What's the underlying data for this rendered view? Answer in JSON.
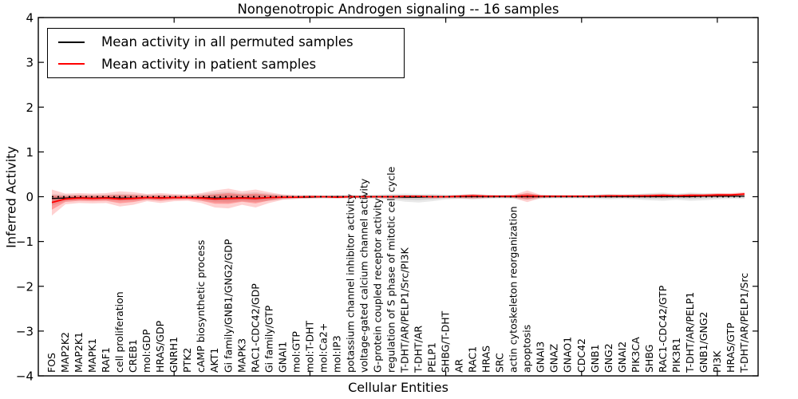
{
  "chart_data": {
    "type": "line",
    "title": "Nongenotropic Androgen signaling -- 16 samples",
    "xlabel": "Cellular Entities",
    "ylabel": "Inferred Activity",
    "ylim": [
      -4,
      4
    ],
    "yticks": [
      4,
      3,
      2,
      1,
      0,
      -1,
      -2,
      -3,
      -4
    ],
    "ytick_labels": [
      "4",
      "3",
      "2",
      "1",
      "0",
      "−1",
      "−2",
      "−3",
      "−4"
    ],
    "xlim": [
      0,
      53
    ],
    "xticks": [
      10,
      20,
      30,
      40,
      50
    ],
    "grid": false,
    "legend_position": "upper-left",
    "zero_line": {
      "y": 0,
      "style": "dotted",
      "color": "#000000"
    },
    "categories": [
      "FOS",
      "MAP2K2",
      "MAP2K1",
      "MAPK1",
      "RAF1",
      "cell proliferation",
      "CREB1",
      "mol:GDP",
      "HRAS/GDP",
      "GNRH1",
      "PTK2",
      "cAMP biosynthetic process",
      "AKT1",
      "Gi family/GNB1/GNG2/GDP",
      "MAPK3",
      "RAC1-CDC42/GDP",
      "Gi family/GTP",
      "GNAI1",
      "mol:GTP",
      "mol:T-DHT",
      "mol:Ca2+",
      "mol:IP3",
      "potassium channel inhibitor activity",
      "voltage-gated calcium channel activity",
      "G-protein coupled receptor activity",
      "regulation of S phase of mitotic cell cycle",
      "T-DHT/AR/PELP1/Src/PI3K",
      "T-DHT/AR",
      "PELP1",
      "SHBG/T-DHT",
      "AR",
      "RAC1",
      "HRAS",
      "SRC",
      "actin cytoskeleton reorganization",
      "apoptosis",
      "GNAI3",
      "GNAZ",
      "GNAO1",
      "CDC42",
      "GNB1",
      "GNG2",
      "GNAI2",
      "PIK3CA",
      "SHBG",
      "RAC1-CDC42/GTP",
      "PIK3R1",
      "T-DHT/AR/PELP1",
      "GNB1/GNG2",
      "PI3K",
      "HRAS/GTP",
      "T-DHT/AR/PELP1/Src"
    ],
    "series": [
      {
        "name": "Mean activity in all permuted samples",
        "color": "#000000",
        "band_color": "#6e6e6e",
        "values": [
          -0.04,
          -0.03,
          -0.02,
          -0.03,
          -0.02,
          -0.03,
          -0.03,
          -0.02,
          -0.02,
          -0.02,
          -0.02,
          -0.02,
          -0.03,
          -0.03,
          -0.02,
          -0.03,
          -0.02,
          -0.01,
          -0.01,
          -0.01,
          0,
          0,
          0,
          0,
          0,
          0,
          -0.01,
          -0.01,
          0,
          0,
          0,
          0,
          0,
          0,
          0,
          0,
          0,
          0,
          0,
          0,
          0,
          0,
          0,
          0,
          0,
          0,
          0,
          0,
          0.01,
          0.01,
          0.01,
          0.01
        ],
        "band_upper": [
          0.06,
          0.05,
          0.05,
          0.05,
          0.05,
          0.07,
          0.06,
          0.05,
          0.05,
          0.04,
          0.04,
          0.06,
          0.09,
          0.11,
          0.08,
          0.1,
          0.07,
          0.05,
          0.04,
          0.04,
          0.03,
          0.04,
          0.04,
          0.04,
          0.05,
          0.06,
          0.07,
          0.06,
          0.06,
          0.05,
          0.05,
          0.06,
          0.05,
          0.04,
          0.05,
          0.07,
          0.05,
          0.04,
          0.04,
          0.04,
          0.05,
          0.06,
          0.05,
          0.06,
          0.08,
          0.09,
          0.07,
          0.09,
          0.08,
          0.07,
          0.06,
          0.06
        ],
        "band_lower": [
          -0.2,
          -0.1,
          -0.08,
          -0.08,
          -0.08,
          -0.1,
          -0.09,
          -0.07,
          -0.08,
          -0.06,
          -0.06,
          -0.08,
          -0.12,
          -0.13,
          -0.1,
          -0.12,
          -0.09,
          -0.06,
          -0.05,
          -0.04,
          -0.04,
          -0.04,
          -0.04,
          -0.04,
          -0.05,
          -0.07,
          -0.11,
          -0.13,
          -0.1,
          -0.06,
          -0.05,
          -0.06,
          -0.05,
          -0.04,
          -0.05,
          -0.07,
          -0.05,
          -0.04,
          -0.04,
          -0.04,
          -0.05,
          -0.06,
          -0.05,
          -0.06,
          -0.08,
          -0.09,
          -0.07,
          -0.09,
          -0.08,
          -0.06,
          -0.05,
          -0.05
        ]
      },
      {
        "name": "Mean activity in patient samples",
        "color": "#ff0000",
        "band_color": "#ff0000",
        "values": [
          -0.13,
          -0.05,
          -0.03,
          -0.04,
          -0.03,
          -0.05,
          -0.04,
          -0.02,
          -0.03,
          -0.02,
          -0.02,
          -0.03,
          -0.05,
          -0.04,
          -0.03,
          -0.04,
          -0.02,
          -0.01,
          -0.01,
          0,
          0,
          -0.01,
          0,
          0,
          0,
          0,
          0.01,
          0.01,
          0,
          0,
          0.01,
          0.02,
          0.01,
          0.01,
          0.01,
          0.02,
          0.01,
          0.01,
          0.01,
          0.01,
          0.01,
          0.02,
          0.02,
          0.02,
          0.02,
          0.03,
          0.02,
          0.03,
          0.03,
          0.04,
          0.04,
          0.06
        ],
        "band_upper": [
          0.16,
          0.07,
          0.08,
          0.07,
          0.08,
          0.12,
          0.1,
          0.06,
          0.08,
          0.06,
          0.05,
          0.08,
          0.14,
          0.18,
          0.12,
          0.16,
          0.1,
          0.05,
          0.03,
          0.03,
          0.02,
          0.03,
          0.02,
          0.02,
          0.02,
          0.03,
          0.03,
          0.02,
          0.03,
          0.02,
          0.04,
          0.06,
          0.04,
          0.03,
          0.04,
          0.14,
          0.04,
          0.03,
          0.03,
          0.03,
          0.04,
          0.05,
          0.04,
          0.05,
          0.06,
          0.07,
          0.05,
          0.07,
          0.06,
          0.08,
          0.08,
          0.1
        ],
        "band_lower": [
          -0.42,
          -0.17,
          -0.14,
          -0.15,
          -0.14,
          -0.22,
          -0.18,
          -0.1,
          -0.14,
          -0.1,
          -0.09,
          -0.14,
          -0.24,
          -0.26,
          -0.18,
          -0.24,
          -0.14,
          -0.07,
          -0.05,
          -0.04,
          -0.03,
          -0.04,
          -0.03,
          -0.03,
          -0.03,
          -0.04,
          -0.04,
          -0.03,
          -0.04,
          -0.03,
          -0.04,
          -0.05,
          -0.03,
          -0.02,
          -0.03,
          -0.12,
          -0.03,
          -0.02,
          -0.02,
          -0.02,
          -0.02,
          -0.02,
          -0.02,
          -0.02,
          -0.02,
          -0.02,
          -0.01,
          -0.02,
          -0.01,
          -0.01,
          0,
          0.01
        ]
      }
    ],
    "legend": {
      "entries": [
        {
          "label": "Mean activity in all permuted samples",
          "color": "#000000"
        },
        {
          "label": "Mean activity in patient samples",
          "color": "#ff0000"
        }
      ]
    }
  }
}
